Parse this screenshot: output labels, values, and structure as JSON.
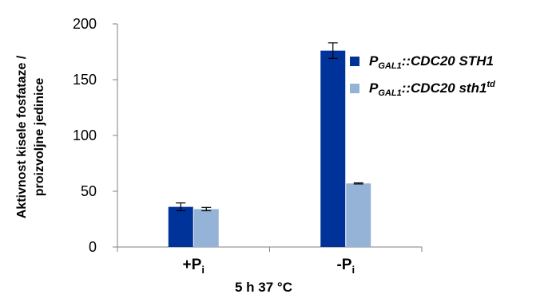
{
  "chart_data": {
    "type": "bar",
    "categories": [
      {
        "main": "+P",
        "sub": "i"
      },
      {
        "main": "-P",
        "sub": "i"
      }
    ],
    "series": [
      {
        "name": "PGAL1::CDC20 STH1",
        "legend": {
          "pre": "P",
          "sub": "GAL1",
          "post": "::CDC20 STH1",
          "sup": ""
        },
        "color": "#003399",
        "values": [
          36,
          176
        ],
        "errors": [
          3.5,
          7
        ]
      },
      {
        "name": "PGAL1::CDC20 sth1td",
        "legend": {
          "pre": "P",
          "sub": "GAL1",
          "post": "::CDC20 sth1",
          "sup": "td"
        },
        "color": "#95B3D7",
        "values": [
          34,
          57
        ],
        "errors": [
          1.5,
          0.5
        ]
      }
    ],
    "ylim": [
      0,
      200
    ],
    "yticks": [
      0,
      50,
      100,
      150,
      200
    ],
    "ylabel_lines": [
      "Aktivnost kisele fosfataze /",
      "proizvoljne jedinice"
    ],
    "xlabel": "5 h 37 °C",
    "grid": false,
    "legend_position": "right"
  }
}
